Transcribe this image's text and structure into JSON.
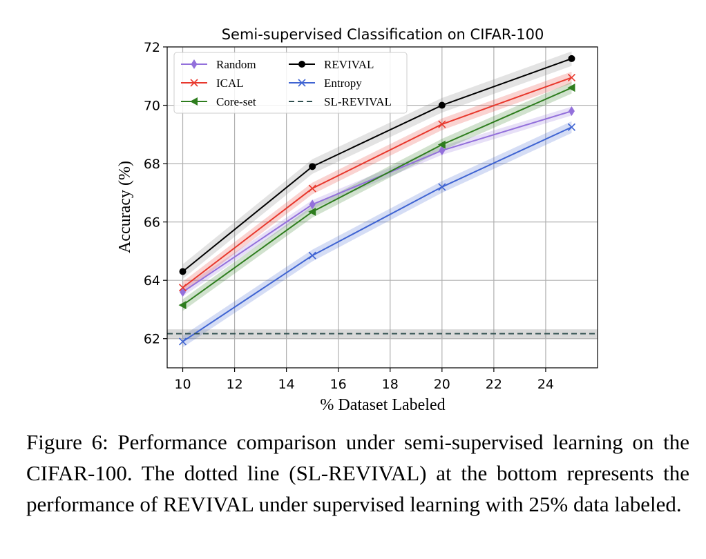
{
  "chart_data": {
    "type": "line",
    "title": "Semi-supervised Classification on CIFAR-100",
    "xlabel": "% Dataset Labeled",
    "ylabel": "Accuracy (%)",
    "xlim": [
      9.4,
      26.0
    ],
    "ylim": [
      61.0,
      72.0
    ],
    "xticks": [
      10,
      12,
      14,
      16,
      18,
      20,
      22,
      24
    ],
    "yticks": [
      62,
      64,
      66,
      68,
      70,
      72
    ],
    "grid": true,
    "legend_position": "top-left",
    "x": [
      10,
      15,
      20,
      25
    ],
    "series": [
      {
        "name": "Random",
        "values": [
          63.6,
          66.6,
          68.45,
          69.8
        ],
        "color": "#9370db",
        "marker": "diamond",
        "band": 0.15
      },
      {
        "name": "ICAL",
        "values": [
          63.75,
          67.15,
          69.35,
          70.95
        ],
        "color": "#e8382d",
        "marker": "x",
        "band": 0.2
      },
      {
        "name": "Core-set",
        "values": [
          63.15,
          66.35,
          68.65,
          70.6
        ],
        "color": "#2e7d1e",
        "marker": "triangle-left",
        "band": 0.2
      },
      {
        "name": "REVIVAL",
        "values": [
          64.3,
          67.9,
          70.0,
          71.6
        ],
        "color": "#000000",
        "marker": "circle",
        "band": 0.25
      },
      {
        "name": "Entropy",
        "values": [
          61.9,
          64.85,
          67.2,
          69.25
        ],
        "color": "#3f64d2",
        "marker": "x",
        "band": 0.2
      },
      {
        "name": "SL-REVIVAL",
        "constant": 62.17,
        "color": "#2f4f4f",
        "dashed": true,
        "band": 0.15
      }
    ]
  },
  "caption": {
    "text": "Figure 6: Performance comparison under semi-supervised learning on the CIFAR-100. The dotted line (SL-REVIVAL) at the bottom represents the performance of REVIVAL under supervised learning with 25% data labeled."
  }
}
